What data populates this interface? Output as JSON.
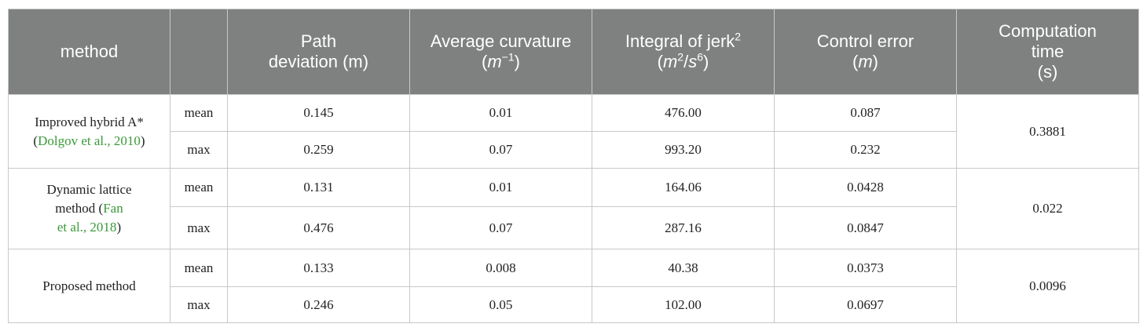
{
  "header": {
    "cells": [
      [
        "method"
      ],
      [
        "Path",
        "deviation (m)"
      ],
      [
        "Average curvature (",
        "m",
        "−1",
        ")"
      ],
      [
        "Integral of jerk",
        "2",
        "(",
        "m",
        "2",
        "/",
        "s",
        "6",
        ")"
      ],
      [
        "Control error",
        "(",
        "m",
        ")"
      ],
      [
        "Computation",
        "time",
        "(s)"
      ]
    ]
  },
  "rows": [
    {
      "method": [
        "Improved hybrid A*",
        "(",
        "Dolgov et al., 2010",
        ")"
      ],
      "stats": [
        {
          "label": "mean",
          "values": [
            "0.145",
            "0.01",
            "476.00",
            "0.087"
          ]
        },
        {
          "label": "max",
          "values": [
            "0.259",
            "0.07",
            "993.20",
            "0.232"
          ]
        }
      ],
      "time": "0.3881"
    },
    {
      "method": [
        "Dynamic lattice",
        "method (",
        "Fan",
        "et al., 2018",
        ")"
      ],
      "stats": [
        {
          "label": "mean",
          "values": [
            "0.131",
            "0.01",
            "164.06",
            "0.0428"
          ]
        },
        {
          "label": "max",
          "values": [
            "0.476",
            "0.07",
            "287.16",
            "0.0847"
          ]
        }
      ],
      "time": "0.022"
    },
    {
      "method": [
        "Proposed method"
      ],
      "stats": [
        {
          "label": "mean",
          "values": [
            "0.133",
            "0.008",
            "40.38",
            "0.0373"
          ]
        },
        {
          "label": "max",
          "values": [
            "0.246",
            "0.05",
            "102.00",
            "0.0697"
          ]
        }
      ],
      "time": "0.0096"
    }
  ]
}
